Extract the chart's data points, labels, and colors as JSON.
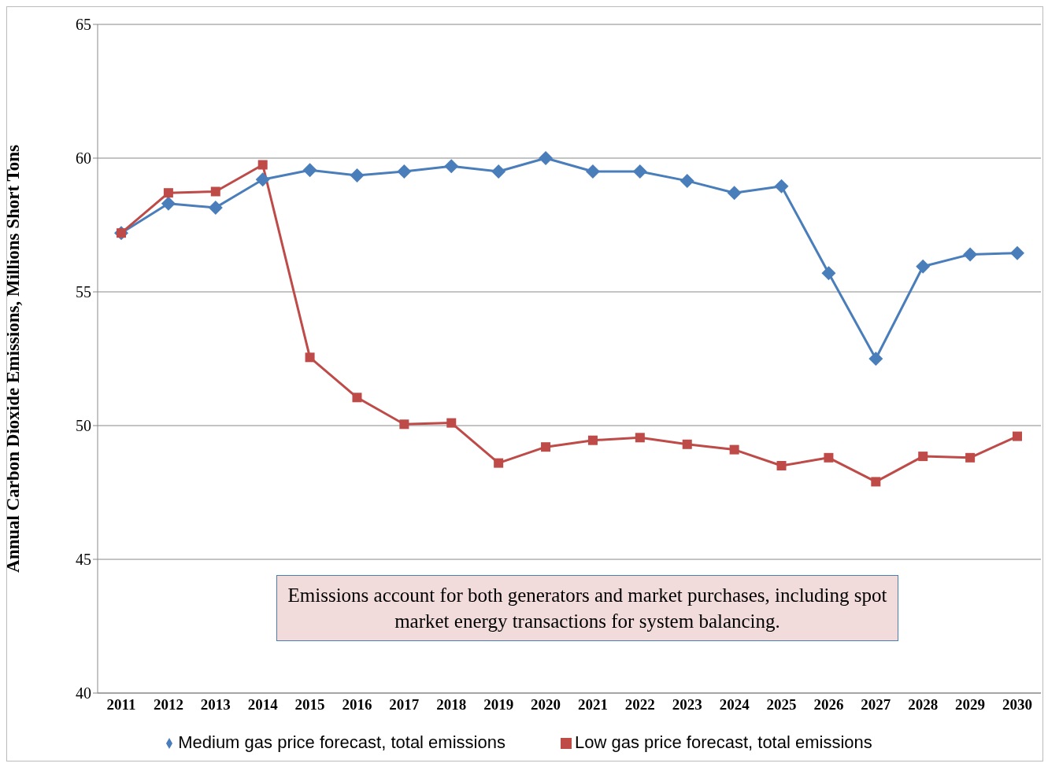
{
  "chart_data": {
    "type": "line",
    "ylabel": "Annual Carbon Dioxide Emissions, Millions Short Tons",
    "categories": [
      "2011",
      "2012",
      "2013",
      "2014",
      "2015",
      "2016",
      "2017",
      "2018",
      "2019",
      "2020",
      "2021",
      "2022",
      "2023",
      "2024",
      "2025",
      "2026",
      "2027",
      "2028",
      "2029",
      "2030"
    ],
    "series": [
      {
        "name": "Medium gas price forecast, total emissions",
        "color": "#4a7ebb",
        "marker": "diamond",
        "values": [
          57.2,
          58.3,
          58.15,
          59.2,
          59.55,
          59.35,
          59.5,
          59.7,
          59.5,
          60.0,
          59.5,
          59.5,
          59.15,
          58.7,
          58.95,
          55.7,
          52.5,
          55.95,
          56.4,
          56.45
        ]
      },
      {
        "name": "Low gas price forecast, total emissions",
        "color": "#be4b48",
        "marker": "square",
        "values": [
          57.2,
          58.7,
          58.75,
          59.75,
          52.55,
          51.05,
          50.05,
          50.1,
          48.6,
          49.2,
          49.45,
          49.55,
          49.3,
          49.1,
          48.5,
          48.8,
          47.9,
          48.85,
          48.8,
          49.6
        ]
      }
    ],
    "ylim": [
      40,
      65
    ],
    "yticks": [
      40,
      45,
      50,
      55,
      60,
      65
    ],
    "grid": "y",
    "legend": "bottom",
    "line_style": "solid",
    "annotations": [
      "Emissions account for both generators and market purchases, including spot market energy transactions for system balancing."
    ]
  }
}
